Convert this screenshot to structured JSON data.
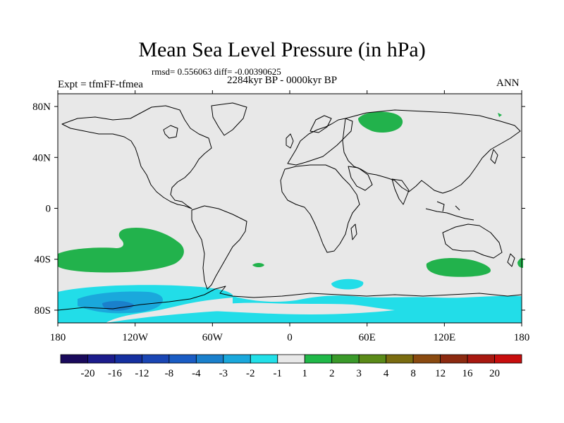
{
  "title": "Mean Sea Level Pressure (in hPa)",
  "stats": "rmsd= 0.556063 diff= -0.00390625",
  "experiment": "Expt = tfmFF-tfmea",
  "period": "2284kyr BP - 0000kyr BP",
  "season": "ANN",
  "map": {
    "background_color": "#e8e8e8",
    "lat_labels": [
      "80N",
      "40N",
      "0",
      "40S",
      "80S"
    ],
    "lat_values": [
      80,
      40,
      0,
      -40,
      -80
    ],
    "lon_labels": [
      "180",
      "120W",
      "60W",
      "0",
      "60E",
      "120E",
      "180"
    ],
    "lon_values": [
      -180,
      -120,
      -60,
      0,
      60,
      120,
      180
    ]
  },
  "colorbar": {
    "colors": [
      "#1a0a5c",
      "#1c1c8c",
      "#1530a0",
      "#1a46b4",
      "#1a5cc4",
      "#1a80cc",
      "#1aa8dc",
      "#22e0e8",
      "#e8e8e8",
      "#20b848",
      "#3a9a2a",
      "#5a8a18",
      "#7a6c10",
      "#8a4a10",
      "#8c2a10",
      "#a81810",
      "#c80e0e"
    ],
    "labels": [
      "-20",
      "-16",
      "-12",
      "-8",
      "-4",
      "-3",
      "-2",
      "-1",
      "1",
      "2",
      "3",
      "4",
      "8",
      "12",
      "16",
      "20"
    ]
  },
  "palette": {
    "positive_anomaly": "#22b24c",
    "negative_light": "#22dde8",
    "negative_mid": "#1aa8dc",
    "negative_strong": "#1a80cc"
  }
}
